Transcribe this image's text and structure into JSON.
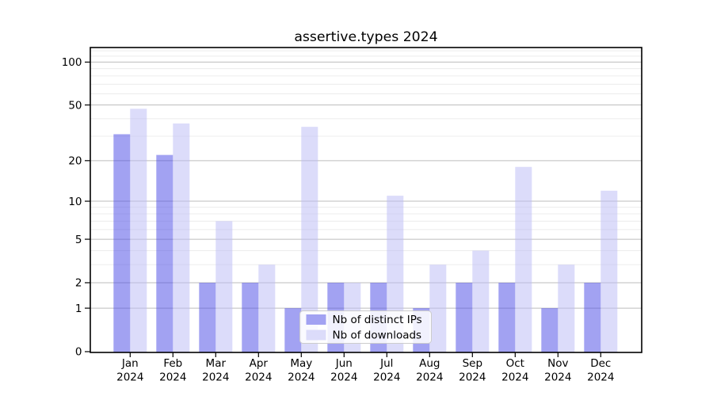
{
  "chart_data": {
    "type": "bar",
    "title": "assertive.types 2024",
    "x_tick_labels": [
      [
        "Jan",
        "2024"
      ],
      [
        "Feb",
        "2024"
      ],
      [
        "Mar",
        "2024"
      ],
      [
        "Apr",
        "2024"
      ],
      [
        "May",
        "2024"
      ],
      [
        "Jun",
        "2024"
      ],
      [
        "Jul",
        "2024"
      ],
      [
        "Aug",
        "2024"
      ],
      [
        "Sep",
        "2024"
      ],
      [
        "Oct",
        "2024"
      ],
      [
        "Nov",
        "2024"
      ],
      [
        "Dec",
        "2024"
      ]
    ],
    "series": [
      {
        "name": "Nb of distinct IPs",
        "color": "#a2a2f2",
        "color_base": "#4545e5",
        "values": [
          31,
          22,
          2,
          2,
          1,
          2,
          2,
          1,
          2,
          2,
          1,
          2
        ]
      },
      {
        "name": "Nb of downloads",
        "color": "#dcdcfa",
        "color_base": "#b9b9f5",
        "values": [
          47,
          37,
          7,
          3,
          35,
          2,
          11,
          3,
          4,
          18,
          3,
          12
        ]
      }
    ],
    "y_axis": {
      "scale": "log10(value+1)",
      "major_ticks": [
        0,
        1,
        2,
        5,
        10,
        20,
        50,
        100
      ],
      "minor_gridlines": [
        3,
        4,
        6,
        7,
        8,
        9,
        30,
        40,
        60,
        70,
        80,
        90,
        110,
        120
      ],
      "ylim": [
        0,
        127
      ]
    },
    "legend": {
      "labels": [
        "Nb of distinct IPs",
        "Nb of downloads"
      ],
      "position": "lower center"
    },
    "colors": {
      "grid_major": "#bdbdbd",
      "grid_minor": "#ececec",
      "spine": "#000000",
      "background": "#ffffff",
      "legend_border": "#cccccc",
      "legend_fill": "#ffffff"
    }
  }
}
